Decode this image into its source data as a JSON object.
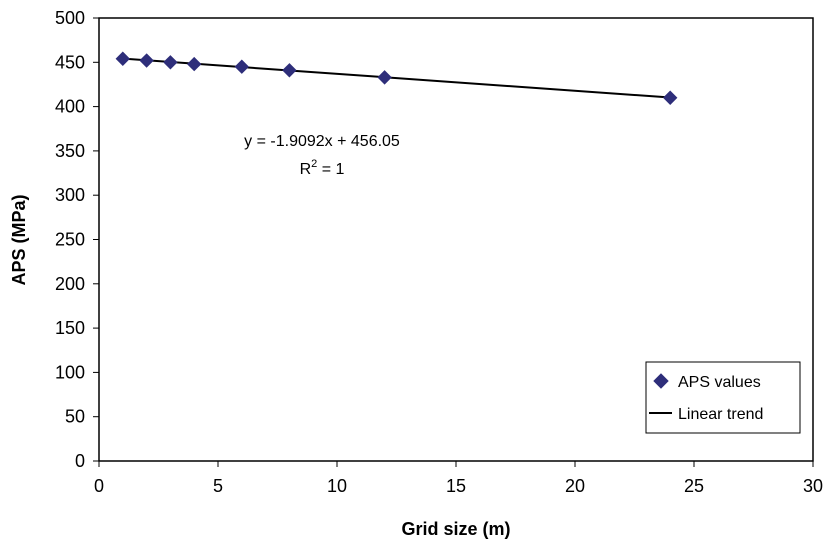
{
  "chart_data": {
    "type": "scatter",
    "xlabel": "Grid size (m)",
    "ylabel": "APS (MPa)",
    "xlim": [
      0,
      30
    ],
    "ylim": [
      0,
      500
    ],
    "xticks": [
      0,
      5,
      10,
      15,
      20,
      25,
      30
    ],
    "yticks": [
      0,
      50,
      100,
      150,
      200,
      250,
      300,
      350,
      400,
      450,
      500
    ],
    "grid": false,
    "legend_position": "bottom-right",
    "series": [
      {
        "name": "APS values",
        "type": "scatter",
        "marker": "diamond",
        "color": "#2e2e7a",
        "x": [
          1,
          2,
          3,
          4,
          6,
          8,
          12,
          24
        ],
        "y": [
          454,
          452,
          450,
          448,
          445,
          441,
          433,
          410
        ]
      },
      {
        "name": "Linear trend",
        "type": "line",
        "color": "#000000",
        "slope": -1.9092,
        "intercept": 456.05,
        "x_range": [
          1,
          24
        ]
      }
    ],
    "annotation": {
      "equation": "y = -1.9092x + 456.05",
      "r2_prefix": "R",
      "r2_exponent": "2",
      "r2_suffix": " = 1"
    }
  }
}
